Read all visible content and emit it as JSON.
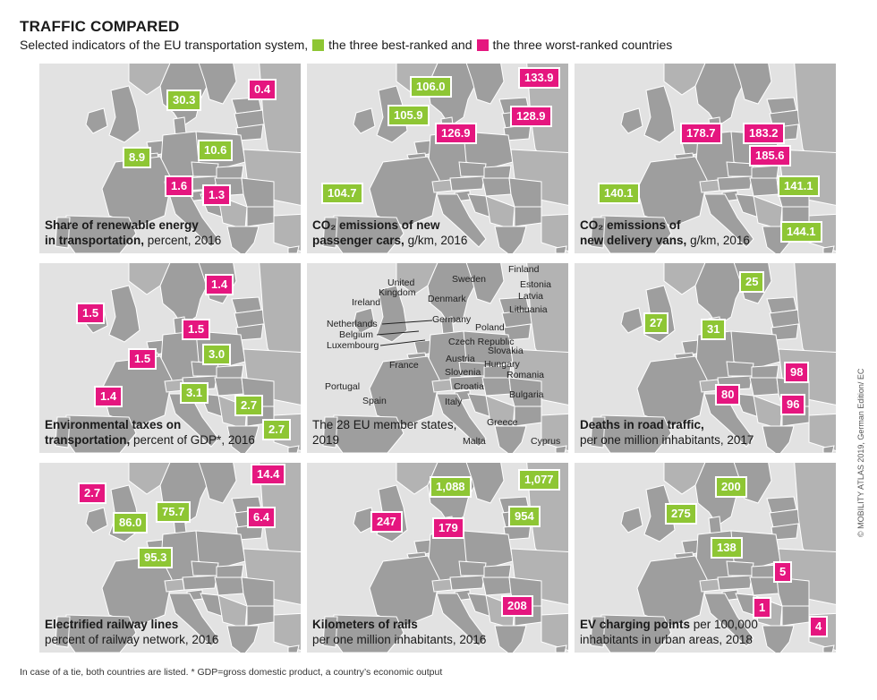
{
  "header": {
    "title": "TRAFFIC COMPARED",
    "subtitle_a": "Selected indicators of the EU transportation system,",
    "subtitle_b": "the three best-ranked and",
    "subtitle_c": "the three worst-ranked countries"
  },
  "colors": {
    "best": "#8ec634",
    "worst": "#e5167f",
    "land": "#9e9e9e",
    "sea": "#e2e2e2"
  },
  "panels": [
    {
      "cap_bold_1": "Share of renewable energy",
      "cap_bold_2": "in transportation,",
      "cap_rest": " percent, 2016",
      "labels": [
        {
          "v": "30.3",
          "c": "best"
        },
        {
          "v": "0.4",
          "c": "worst"
        },
        {
          "v": "8.9",
          "c": "best"
        },
        {
          "v": "10.6",
          "c": "best"
        },
        {
          "v": "1.6",
          "c": "worst"
        },
        {
          "v": "1.3",
          "c": "worst"
        }
      ]
    },
    {
      "cap_bold_1": "CO₂ emissions of new",
      "cap_bold_2": "passenger cars,",
      "cap_rest": "  g/km, 2016",
      "labels": [
        {
          "v": "106.0",
          "c": "best"
        },
        {
          "v": "133.9",
          "c": "worst"
        },
        {
          "v": "105.9",
          "c": "best"
        },
        {
          "v": "128.9",
          "c": "worst"
        },
        {
          "v": "126.9",
          "c": "worst"
        },
        {
          "v": "104.7",
          "c": "best"
        }
      ]
    },
    {
      "cap_bold_1": "CO₂ emissions of",
      "cap_bold_2": "new delivery vans,",
      "cap_rest": " g/km, 2016",
      "labels": [
        {
          "v": "178.7",
          "c": "worst"
        },
        {
          "v": "183.2",
          "c": "worst"
        },
        {
          "v": "185.6",
          "c": "worst"
        },
        {
          "v": "140.1",
          "c": "best"
        },
        {
          "v": "141.1",
          "c": "best"
        },
        {
          "v": "144.1",
          "c": "best"
        }
      ]
    },
    {
      "cap_bold_1": "Environmental taxes on",
      "cap_bold_2": "transportation,",
      "cap_rest": " percent of GDP*, 2016",
      "labels": [
        {
          "v": "1.4",
          "c": "worst"
        },
        {
          "v": "1.5",
          "c": "worst"
        },
        {
          "v": "1.5",
          "c": "worst"
        },
        {
          "v": "1.5",
          "c": "worst"
        },
        {
          "v": "3.0",
          "c": "best"
        },
        {
          "v": "3.1",
          "c": "best"
        },
        {
          "v": "1.4",
          "c": "worst"
        },
        {
          "v": "2.7",
          "c": "best"
        },
        {
          "v": "2.7",
          "c": "best"
        }
      ]
    },
    {
      "cap_plain_1": "The 28 EU member states,",
      "cap_plain_2": "2019",
      "countries": [
        "Finland",
        "Sweden",
        "Estonia",
        "United",
        "Kingdom",
        "Latvia",
        "Ireland",
        "Denmark",
        "Lithuania",
        "Netherlands",
        "Germany",
        "Belgium",
        "Poland",
        "Luxembourg",
        "Czech Republic",
        "Slovakia",
        "France",
        "Austria",
        "Hungary",
        "Slovenia",
        "Romania",
        "Croatia",
        "Portugal",
        "Bulgaria",
        "Spain",
        "Italy",
        "Greece",
        "Malta",
        "Cyprus"
      ]
    },
    {
      "cap_bold_1": "Deaths in road traffic,",
      "cap_plain_2": "per one million inhabitants, 2017",
      "labels": [
        {
          "v": "25",
          "c": "best"
        },
        {
          "v": "27",
          "c": "best"
        },
        {
          "v": "31",
          "c": "best"
        },
        {
          "v": "98",
          "c": "worst"
        },
        {
          "v": "80",
          "c": "worst"
        },
        {
          "v": "96",
          "c": "worst"
        }
      ]
    },
    {
      "cap_bold_1": "Electrified railway lines",
      "cap_plain_2": "percent of railway network, 2016",
      "labels": [
        {
          "v": "14.4",
          "c": "worst"
        },
        {
          "v": "2.7",
          "c": "worst"
        },
        {
          "v": "75.7",
          "c": "best"
        },
        {
          "v": "86.0",
          "c": "best"
        },
        {
          "v": "6.4",
          "c": "worst"
        },
        {
          "v": "95.3",
          "c": "best"
        }
      ]
    },
    {
      "cap_bold_1": "Kilometers of rails",
      "cap_plain_2": "per one million inhabitants, 2016",
      "labels": [
        {
          "v": "1,088",
          "c": "best"
        },
        {
          "v": "1,077",
          "c": "best"
        },
        {
          "v": "954",
          "c": "best"
        },
        {
          "v": "247",
          "c": "worst"
        },
        {
          "v": "179",
          "c": "worst"
        },
        {
          "v": "208",
          "c": "worst"
        }
      ]
    },
    {
      "cap_bold_1": "EV charging points",
      "cap_rest_1": " per 100,000",
      "cap_plain_2": "inhabitants in urban areas, 2018",
      "labels": [
        {
          "v": "200",
          "c": "best"
        },
        {
          "v": "275",
          "c": "best"
        },
        {
          "v": "138",
          "c": "best"
        },
        {
          "v": "5",
          "c": "worst"
        },
        {
          "v": "1",
          "c": "worst"
        },
        {
          "v": "4",
          "c": "worst"
        }
      ]
    }
  ],
  "footnote": "In case of a tie, both countries are listed. * GDP=gross domestic product, a country’s economic output",
  "credit": "© MOBILITY ATLAS 2019, German Edition/ EC"
}
